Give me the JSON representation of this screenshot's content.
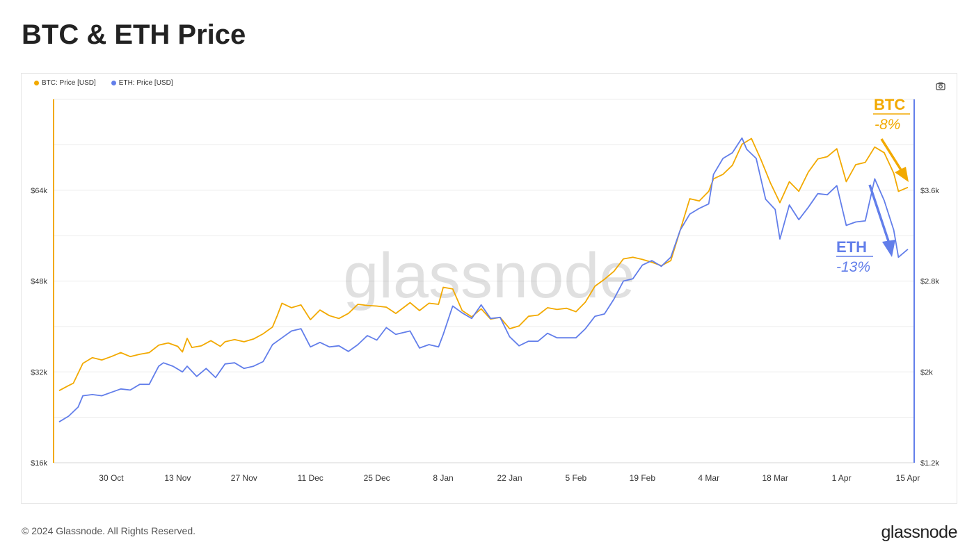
{
  "title": "BTC & ETH Price",
  "legend": {
    "btc_label": "BTC: Price [USD]",
    "eth_label": "ETH: Price [USD]"
  },
  "watermark": "glassnode",
  "footer": {
    "copyright": "© 2024 Glassnode. All Rights Reserved.",
    "brand": "glassnode"
  },
  "icons": {
    "camera": "camera-icon"
  },
  "colors": {
    "btc": "#F2A900",
    "eth": "#627EEA",
    "grid": "#ececec"
  },
  "annotations": {
    "btc_name": "BTC",
    "btc_change": "-8%",
    "eth_name": "ETH",
    "eth_change": "-13%"
  },
  "chart_data": {
    "type": "line",
    "x_range": [
      "2023-10-19",
      "2024-04-15"
    ],
    "x_ticks": [
      {
        "date": "2023-10-30",
        "label": "30 Oct"
      },
      {
        "date": "2023-11-13",
        "label": "13 Nov"
      },
      {
        "date": "2023-11-27",
        "label": "27 Nov"
      },
      {
        "date": "2023-12-11",
        "label": "11 Dec"
      },
      {
        "date": "2023-12-25",
        "label": "25 Dec"
      },
      {
        "date": "2024-01-08",
        "label": "8 Jan"
      },
      {
        "date": "2024-01-22",
        "label": "22 Jan"
      },
      {
        "date": "2024-02-05",
        "label": "5 Feb"
      },
      {
        "date": "2024-02-19",
        "label": "19 Feb"
      },
      {
        "date": "2024-03-04",
        "label": "4 Mar"
      },
      {
        "date": "2024-03-18",
        "label": "18 Mar"
      },
      {
        "date": "2024-04-01",
        "label": "1 Apr"
      },
      {
        "date": "2024-04-15",
        "label": "15 Apr"
      }
    ],
    "y_left": {
      "range": [
        16000,
        80000
      ],
      "ticks": [
        {
          "value": 16000,
          "label": "$16k"
        },
        {
          "value": 32000,
          "label": "$32k"
        },
        {
          "value": 48000,
          "label": "$48k"
        },
        {
          "value": 64000,
          "label": "$64k"
        }
      ]
    },
    "y_right": {
      "range": [
        1200,
        4400
      ],
      "ticks": [
        {
          "value": 1200,
          "label": "$1.2k"
        },
        {
          "value": 2000,
          "label": "$2k"
        },
        {
          "value": 2800,
          "label": "$2.8k"
        },
        {
          "value": 3600,
          "label": "$3.6k"
        }
      ]
    },
    "grid_values_left": [
      24000,
      32000,
      40000,
      48000,
      56000,
      64000,
      72000,
      80000
    ],
    "series": [
      {
        "name": "BTC: Price [USD]",
        "axis": "left",
        "points": [
          [
            "2023-10-19",
            28700
          ],
          [
            "2023-10-21",
            29600
          ],
          [
            "2023-10-22",
            30000
          ],
          [
            "2023-10-24",
            33500
          ],
          [
            "2023-10-26",
            34500
          ],
          [
            "2023-10-28",
            34100
          ],
          [
            "2023-10-30",
            34700
          ],
          [
            "2023-11-01",
            35400
          ],
          [
            "2023-11-03",
            34700
          ],
          [
            "2023-11-05",
            35100
          ],
          [
            "2023-11-07",
            35400
          ],
          [
            "2023-11-09",
            36700
          ],
          [
            "2023-11-11",
            37100
          ],
          [
            "2023-11-13",
            36500
          ],
          [
            "2023-11-14",
            35500
          ],
          [
            "2023-11-15",
            37900
          ],
          [
            "2023-11-16",
            36300
          ],
          [
            "2023-11-18",
            36600
          ],
          [
            "2023-11-20",
            37500
          ],
          [
            "2023-11-22",
            36500
          ],
          [
            "2023-11-23",
            37300
          ],
          [
            "2023-11-25",
            37700
          ],
          [
            "2023-11-27",
            37300
          ],
          [
            "2023-11-29",
            37800
          ],
          [
            "2023-12-01",
            38700
          ],
          [
            "2023-12-03",
            39900
          ],
          [
            "2023-12-04",
            41900
          ],
          [
            "2023-12-05",
            44100
          ],
          [
            "2023-12-07",
            43300
          ],
          [
            "2023-12-09",
            43800
          ],
          [
            "2023-12-11",
            41200
          ],
          [
            "2023-12-13",
            42900
          ],
          [
            "2023-12-15",
            41900
          ],
          [
            "2023-12-17",
            41400
          ],
          [
            "2023-12-19",
            42300
          ],
          [
            "2023-12-21",
            43900
          ],
          [
            "2023-12-23",
            43700
          ],
          [
            "2023-12-25",
            43600
          ],
          [
            "2023-12-27",
            43400
          ],
          [
            "2023-12-29",
            42300
          ],
          [
            "2024-01-01",
            44200
          ],
          [
            "2024-01-03",
            42800
          ],
          [
            "2024-01-05",
            44100
          ],
          [
            "2024-01-07",
            43900
          ],
          [
            "2024-01-08",
            46900
          ],
          [
            "2024-01-10",
            46600
          ],
          [
            "2024-01-12",
            42800
          ],
          [
            "2024-01-14",
            41700
          ],
          [
            "2024-01-16",
            43100
          ],
          [
            "2024-01-18",
            41300
          ],
          [
            "2024-01-20",
            41600
          ],
          [
            "2024-01-22",
            39600
          ],
          [
            "2024-01-24",
            40100
          ],
          [
            "2024-01-26",
            41800
          ],
          [
            "2024-01-28",
            42000
          ],
          [
            "2024-01-30",
            43300
          ],
          [
            "2024-02-01",
            43000
          ],
          [
            "2024-02-03",
            43200
          ],
          [
            "2024-02-05",
            42600
          ],
          [
            "2024-02-07",
            44300
          ],
          [
            "2024-02-09",
            47100
          ],
          [
            "2024-02-11",
            48300
          ],
          [
            "2024-02-13",
            49700
          ],
          [
            "2024-02-15",
            51900
          ],
          [
            "2024-02-17",
            52200
          ],
          [
            "2024-02-19",
            51800
          ],
          [
            "2024-02-21",
            51300
          ],
          [
            "2024-02-23",
            50700
          ],
          [
            "2024-02-25",
            51600
          ],
          [
            "2024-02-27",
            57000
          ],
          [
            "2024-02-29",
            62500
          ],
          [
            "2024-03-02",
            62100
          ],
          [
            "2024-03-04",
            63800
          ],
          [
            "2024-03-05",
            66000
          ],
          [
            "2024-03-07",
            66800
          ],
          [
            "2024-03-09",
            68400
          ],
          [
            "2024-03-11",
            72100
          ],
          [
            "2024-03-13",
            73100
          ],
          [
            "2024-03-15",
            69400
          ],
          [
            "2024-03-17",
            65300
          ],
          [
            "2024-03-19",
            61800
          ],
          [
            "2024-03-21",
            65500
          ],
          [
            "2024-03-23",
            63800
          ],
          [
            "2024-03-25",
            67200
          ],
          [
            "2024-03-27",
            69500
          ],
          [
            "2024-03-29",
            69900
          ],
          [
            "2024-03-31",
            71300
          ],
          [
            "2024-04-02",
            65500
          ],
          [
            "2024-04-04",
            68500
          ],
          [
            "2024-04-06",
            68900
          ],
          [
            "2024-04-08",
            71600
          ],
          [
            "2024-04-10",
            70600
          ],
          [
            "2024-04-12",
            67000
          ],
          [
            "2024-04-13",
            63800
          ],
          [
            "2024-04-15",
            64500
          ]
        ]
      },
      {
        "name": "ETH: Price [USD]",
        "axis": "left",
        "axis_note": "right",
        "points": [
          [
            "2023-10-19",
            1560
          ],
          [
            "2023-10-21",
            1610
          ],
          [
            "2023-10-23",
            1690
          ],
          [
            "2023-10-24",
            1790
          ],
          [
            "2023-10-26",
            1800
          ],
          [
            "2023-10-28",
            1790
          ],
          [
            "2023-10-30",
            1820
          ],
          [
            "2023-11-01",
            1850
          ],
          [
            "2023-11-03",
            1840
          ],
          [
            "2023-11-05",
            1890
          ],
          [
            "2023-11-07",
            1890
          ],
          [
            "2023-11-09",
            2050
          ],
          [
            "2023-11-10",
            2080
          ],
          [
            "2023-11-12",
            2050
          ],
          [
            "2023-11-14",
            2000
          ],
          [
            "2023-11-15",
            2050
          ],
          [
            "2023-11-17",
            1960
          ],
          [
            "2023-11-19",
            2030
          ],
          [
            "2023-11-21",
            1950
          ],
          [
            "2023-11-23",
            2070
          ],
          [
            "2023-11-25",
            2080
          ],
          [
            "2023-11-27",
            2030
          ],
          [
            "2023-11-29",
            2050
          ],
          [
            "2023-12-01",
            2090
          ],
          [
            "2023-12-03",
            2240
          ],
          [
            "2023-12-05",
            2300
          ],
          [
            "2023-12-07",
            2360
          ],
          [
            "2023-12-09",
            2380
          ],
          [
            "2023-12-11",
            2220
          ],
          [
            "2023-12-13",
            2260
          ],
          [
            "2023-12-15",
            2220
          ],
          [
            "2023-12-17",
            2230
          ],
          [
            "2023-12-19",
            2180
          ],
          [
            "2023-12-21",
            2240
          ],
          [
            "2023-12-23",
            2320
          ],
          [
            "2023-12-25",
            2280
          ],
          [
            "2023-12-27",
            2390
          ],
          [
            "2023-12-29",
            2330
          ],
          [
            "2024-01-01",
            2360
          ],
          [
            "2024-01-03",
            2210
          ],
          [
            "2024-01-05",
            2240
          ],
          [
            "2024-01-07",
            2220
          ],
          [
            "2024-01-08",
            2330
          ],
          [
            "2024-01-10",
            2580
          ],
          [
            "2024-01-12",
            2520
          ],
          [
            "2024-01-14",
            2470
          ],
          [
            "2024-01-16",
            2590
          ],
          [
            "2024-01-18",
            2470
          ],
          [
            "2024-01-20",
            2480
          ],
          [
            "2024-01-22",
            2310
          ],
          [
            "2024-01-24",
            2230
          ],
          [
            "2024-01-26",
            2270
          ],
          [
            "2024-01-28",
            2270
          ],
          [
            "2024-01-30",
            2340
          ],
          [
            "2024-02-01",
            2300
          ],
          [
            "2024-02-03",
            2300
          ],
          [
            "2024-02-05",
            2300
          ],
          [
            "2024-02-07",
            2380
          ],
          [
            "2024-02-09",
            2490
          ],
          [
            "2024-02-11",
            2510
          ],
          [
            "2024-02-13",
            2640
          ],
          [
            "2024-02-15",
            2800
          ],
          [
            "2024-02-17",
            2820
          ],
          [
            "2024-02-19",
            2940
          ],
          [
            "2024-02-21",
            2980
          ],
          [
            "2024-02-23",
            2930
          ],
          [
            "2024-02-25",
            3010
          ],
          [
            "2024-02-27",
            3250
          ],
          [
            "2024-02-29",
            3390
          ],
          [
            "2024-03-02",
            3440
          ],
          [
            "2024-03-04",
            3480
          ],
          [
            "2024-03-05",
            3740
          ],
          [
            "2024-03-07",
            3880
          ],
          [
            "2024-03-09",
            3930
          ],
          [
            "2024-03-11",
            4060
          ],
          [
            "2024-03-12",
            3960
          ],
          [
            "2024-03-14",
            3880
          ],
          [
            "2024-03-16",
            3520
          ],
          [
            "2024-03-18",
            3430
          ],
          [
            "2024-03-19",
            3170
          ],
          [
            "2024-03-21",
            3470
          ],
          [
            "2024-03-23",
            3340
          ],
          [
            "2024-03-25",
            3450
          ],
          [
            "2024-03-27",
            3570
          ],
          [
            "2024-03-29",
            3560
          ],
          [
            "2024-03-31",
            3640
          ],
          [
            "2024-04-02",
            3290
          ],
          [
            "2024-04-04",
            3320
          ],
          [
            "2024-04-06",
            3330
          ],
          [
            "2024-04-08",
            3700
          ],
          [
            "2024-04-10",
            3510
          ],
          [
            "2024-04-12",
            3250
          ],
          [
            "2024-04-13",
            3010
          ],
          [
            "2024-04-15",
            3080
          ]
        ]
      }
    ]
  }
}
